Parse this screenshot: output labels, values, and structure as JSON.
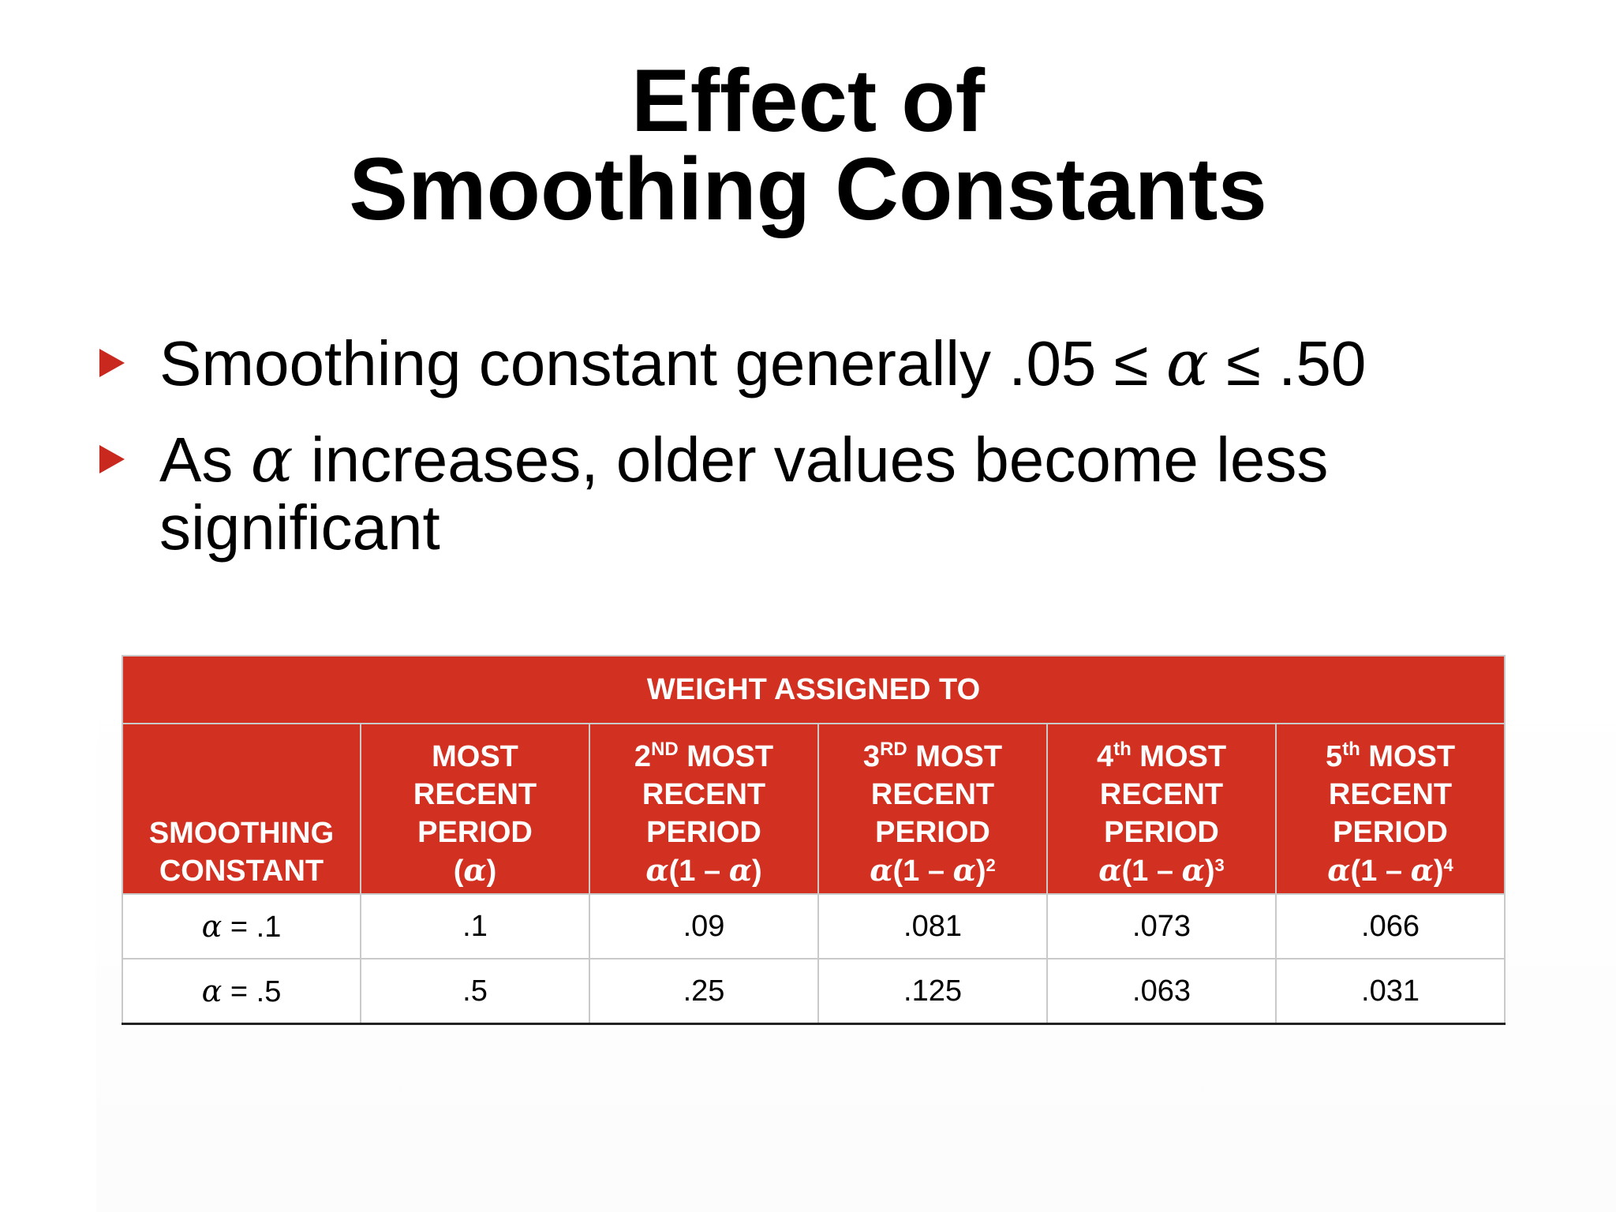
{
  "slide": {
    "title_line1": "Effect of",
    "title_line2": "Smoothing Constants",
    "bullets": [
      {
        "before": "Smoothing constant generally .05 ≤ ",
        "alpha": "α",
        "after": " ≤ .50"
      },
      {
        "before": "As ",
        "alpha": "α",
        "after": " increases, older values become less significant"
      }
    ],
    "colors": {
      "accent": "#d23121",
      "bullet_arrow": "#c8281e"
    },
    "icons": {
      "bullet": "triangle-right-icon"
    }
  },
  "table": {
    "group_header": "WEIGHT ASSIGNED TO",
    "row_header": {
      "line1": "SMOOTHING",
      "line2": "CONSTANT"
    },
    "columns": [
      {
        "ord": "",
        "ord_sup": "",
        "l1": "MOST",
        "l2": "RECENT",
        "l3": "PERIOD",
        "formula_a": "(",
        "formula_alpha1": "α",
        "formula_b": ")",
        "formula_alpha2": "",
        "formula_c": "",
        "formula_sup": ""
      },
      {
        "ord": "2",
        "ord_sup": "ND",
        "l1": " MOST",
        "l2": "RECENT",
        "l3": "PERIOD",
        "formula_a": "",
        "formula_alpha1": "α",
        "formula_b": "(1 – ",
        "formula_alpha2": "α",
        "formula_c": ")",
        "formula_sup": ""
      },
      {
        "ord": "3",
        "ord_sup": "RD",
        "l1": " MOST",
        "l2": "RECENT",
        "l3": "PERIOD",
        "formula_a": "",
        "formula_alpha1": "α",
        "formula_b": "(1 – ",
        "formula_alpha2": "α",
        "formula_c": ")",
        "formula_sup": "2"
      },
      {
        "ord": "4",
        "ord_sup": "th",
        "l1": "  MOST",
        "l2": "RECENT",
        "l3": "PERIOD",
        "formula_a": "",
        "formula_alpha1": "α",
        "formula_b": "(1 – ",
        "formula_alpha2": "α",
        "formula_c": ")",
        "formula_sup": "3"
      },
      {
        "ord": "5",
        "ord_sup": "th",
        "l1": "  MOST",
        "l2": "RECENT",
        "l3": "PERIOD",
        "formula_a": "",
        "formula_alpha1": "α",
        "formula_b": "(1 – ",
        "formula_alpha2": "α",
        "formula_c": ")",
        "formula_sup": "4"
      }
    ],
    "rows": [
      {
        "alpha": "α",
        "label": " = .1",
        "values": [
          ".1",
          ".09",
          ".081",
          ".073",
          ".066"
        ]
      },
      {
        "alpha": "α",
        "label": " = .5",
        "values": [
          ".5",
          ".25",
          ".125",
          ".063",
          ".031"
        ]
      }
    ]
  }
}
